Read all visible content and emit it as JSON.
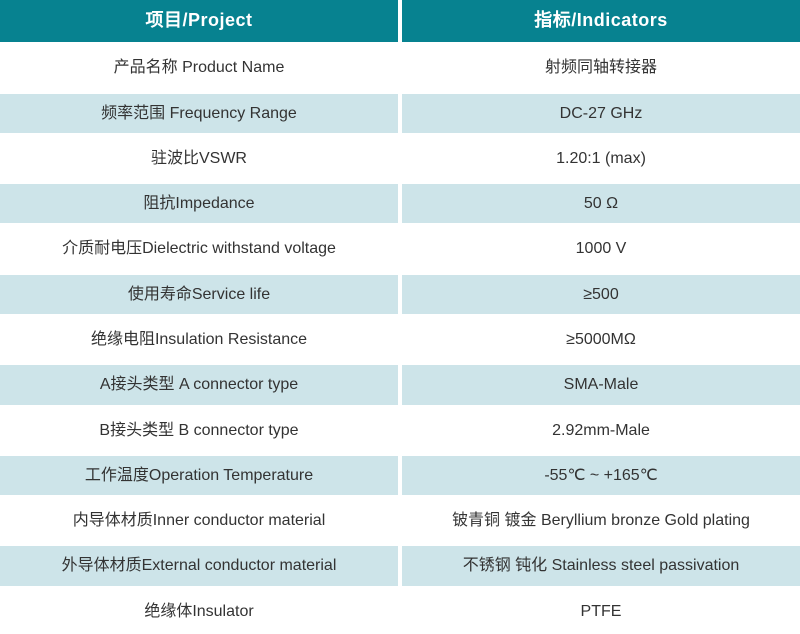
{
  "chart_data": {
    "type": "table",
    "columns": [
      "项目/Project",
      "指标/Indicators"
    ],
    "rows": [
      [
        "产品名称 Product Name",
        "射频同轴转接器"
      ],
      [
        "频率范围 Frequency Range",
        "DC-27 GHz"
      ],
      [
        "驻波比VSWR",
        "1.20:1 (max)"
      ],
      [
        "阻抗Impedance",
        "50 Ω"
      ],
      [
        "介质耐电压Dielectric withstand voltage",
        "1000 V"
      ],
      [
        "使用寿命Service life",
        "≥500"
      ],
      [
        "绝缘电阻Insulation Resistance",
        "≥5000MΩ"
      ],
      [
        "A接头类型 A connector type",
        "SMA-Male"
      ],
      [
        "B接头类型 B connector type",
        "2.92mm-Male"
      ],
      [
        "工作温度Operation Temperature",
        "-55℃ ~ +165℃"
      ],
      [
        "内导体材质Inner conductor material",
        "铍青铜 镀金 Beryllium bronze Gold plating"
      ],
      [
        "外导体材质External conductor material",
        "不锈钢 钝化 Stainless steel passivation"
      ],
      [
        "绝缘体Insulator",
        "PTFE"
      ]
    ]
  },
  "colors": {
    "header_bg": "#078290",
    "header_text": "#FFFFFF",
    "alt_row_bg": "#CDE4E9",
    "row_bg": "#FFFFFF",
    "body_text": "#333333",
    "divider": "#FFFFFF"
  }
}
